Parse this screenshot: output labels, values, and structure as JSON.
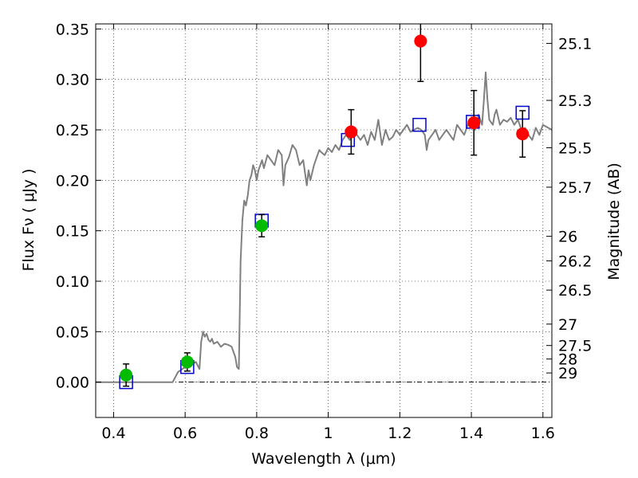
{
  "chart_data": {
    "type": "scatter",
    "xlabel": "Wavelength  λ (μm)",
    "ylabel": "Flux  Fν  ( μJy )",
    "y2label": "Magnitude (AB)",
    "xlim": [
      0.35,
      1.625
    ],
    "ylim": [
      -0.035,
      0.355
    ],
    "grid": true,
    "xticks": [
      0.4,
      0.6,
      0.8,
      1.0,
      1.2,
      1.4,
      1.6
    ],
    "xtick_labels": [
      "0.4",
      "0.6",
      "0.8",
      "1",
      "1.2",
      "1.4",
      "1.6"
    ],
    "yticks": [
      0.0,
      0.05,
      0.1,
      0.15,
      0.2,
      0.25,
      0.3,
      0.35
    ],
    "ytick_labels": [
      "0.00",
      "0.05",
      "0.10",
      "0.15",
      "0.20",
      "0.25",
      "0.30",
      "0.35"
    ],
    "magnitude_ticks": [
      {
        "label": "25.1",
        "flux": 0.3357
      },
      {
        "label": "25.3",
        "flux": 0.2792
      },
      {
        "label": "25.5",
        "flux": 0.2323
      },
      {
        "label": "25.7",
        "flux": 0.1932
      },
      {
        "label": "26",
        "flux": 0.1445
      },
      {
        "label": "26.2",
        "flux": 0.1202
      },
      {
        "label": "26.5",
        "flux": 0.0912
      },
      {
        "label": "27",
        "flux": 0.0575
      },
      {
        "label": "27.5",
        "flux": 0.0363
      },
      {
        "label": "28",
        "flux": 0.0229
      },
      {
        "label": "29",
        "flux": 0.0091
      }
    ],
    "zero_line_y": 0.0,
    "series": [
      {
        "kind": "model_spectrum",
        "color": "#808080",
        "x": [
          0.35,
          0.565,
          0.58,
          0.6,
          0.62,
          0.63,
          0.64,
          0.645,
          0.65,
          0.655,
          0.66,
          0.665,
          0.67,
          0.675,
          0.68,
          0.69,
          0.7,
          0.71,
          0.72,
          0.73,
          0.74,
          0.745,
          0.75,
          0.755,
          0.76,
          0.765,
          0.77,
          0.775,
          0.78,
          0.785,
          0.79,
          0.795,
          0.8,
          0.805,
          0.81,
          0.815,
          0.82,
          0.83,
          0.84,
          0.85,
          0.86,
          0.87,
          0.875,
          0.88,
          0.89,
          0.9,
          0.91,
          0.92,
          0.93,
          0.94,
          0.945,
          0.95,
          0.96,
          0.97,
          0.975,
          0.98,
          0.99,
          1.0,
          1.01,
          1.02,
          1.03,
          1.04,
          1.05,
          1.06,
          1.07,
          1.08,
          1.09,
          1.1,
          1.11,
          1.12,
          1.13,
          1.14,
          1.15,
          1.16,
          1.165,
          1.17,
          1.18,
          1.19,
          1.2,
          1.21,
          1.22,
          1.23,
          1.24,
          1.25,
          1.26,
          1.27,
          1.275,
          1.28,
          1.29,
          1.3,
          1.31,
          1.32,
          1.33,
          1.34,
          1.35,
          1.36,
          1.37,
          1.38,
          1.39,
          1.4,
          1.41,
          1.42,
          1.43,
          1.435,
          1.44,
          1.445,
          1.45,
          1.46,
          1.465,
          1.47,
          1.48,
          1.49,
          1.5,
          1.51,
          1.52,
          1.53,
          1.54,
          1.55,
          1.56,
          1.57,
          1.58,
          1.59,
          1.6,
          1.61,
          1.625
        ],
        "y": [
          0.0,
          0.0,
          0.01,
          0.015,
          0.018,
          0.02,
          0.013,
          0.04,
          0.05,
          0.045,
          0.048,
          0.042,
          0.04,
          0.043,
          0.038,
          0.04,
          0.035,
          0.038,
          0.037,
          0.035,
          0.025,
          0.015,
          0.013,
          0.12,
          0.16,
          0.18,
          0.175,
          0.185,
          0.2,
          0.205,
          0.215,
          0.21,
          0.2,
          0.21,
          0.215,
          0.22,
          0.212,
          0.225,
          0.22,
          0.215,
          0.23,
          0.225,
          0.195,
          0.215,
          0.223,
          0.235,
          0.23,
          0.215,
          0.22,
          0.195,
          0.21,
          0.2,
          0.215,
          0.225,
          0.23,
          0.228,
          0.225,
          0.232,
          0.228,
          0.235,
          0.23,
          0.24,
          0.245,
          0.24,
          0.25,
          0.245,
          0.24,
          0.245,
          0.235,
          0.248,
          0.24,
          0.26,
          0.235,
          0.25,
          0.245,
          0.24,
          0.243,
          0.25,
          0.245,
          0.25,
          0.255,
          0.248,
          0.25,
          0.252,
          0.25,
          0.245,
          0.23,
          0.24,
          0.245,
          0.25,
          0.24,
          0.245,
          0.25,
          0.245,
          0.24,
          0.255,
          0.25,
          0.245,
          0.255,
          0.26,
          0.25,
          0.265,
          0.255,
          0.28,
          0.307,
          0.28,
          0.26,
          0.255,
          0.265,
          0.27,
          0.255,
          0.26,
          0.258,
          0.262,
          0.255,
          0.26,
          0.25,
          0.252,
          0.245,
          0.24,
          0.252,
          0.245,
          0.255,
          0.253,
          0.25
        ]
      },
      {
        "kind": "model_band_flux",
        "marker": "open_square",
        "color": "#0000cc",
        "x": [
          0.435,
          0.606,
          0.814,
          1.055,
          1.255,
          1.404,
          1.543
        ],
        "y": [
          0.0,
          0.015,
          0.16,
          0.24,
          0.255,
          0.258,
          0.267
        ]
      },
      {
        "kind": "observed_optical",
        "marker": "filled_circle",
        "color": "#00bb00",
        "x": [
          0.435,
          0.606,
          0.814
        ],
        "y": [
          0.007,
          0.02,
          0.155
        ],
        "yerr": [
          0.011,
          0.009,
          0.011
        ]
      },
      {
        "kind": "observed_nir",
        "marker": "filled_circle",
        "color": "#ff0000",
        "x": [
          1.064,
          1.258,
          1.407,
          1.543
        ],
        "y": [
          0.248,
          0.338,
          0.257,
          0.246
        ],
        "yerr": [
          0.022,
          0.04,
          0.032,
          0.023
        ]
      }
    ]
  }
}
